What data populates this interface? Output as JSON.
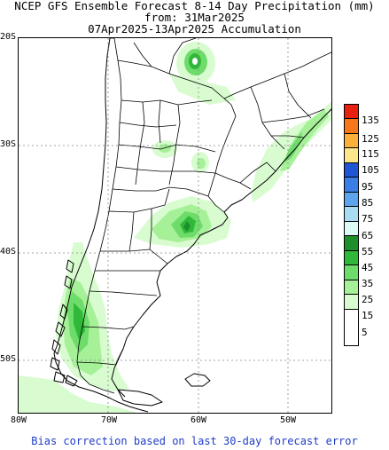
{
  "header": {
    "line1": "NCEP GFS Ensemble Forecast 8-14 Day Precipitation (mm)",
    "line2": "from: 31Mar2025",
    "line3": "07Apr2025-13Apr2025 Accumulation"
  },
  "map": {
    "lat_labels": [
      "20S",
      "30S",
      "40S",
      "50S"
    ],
    "lon_labels": [
      "80W",
      "70W",
      "60W",
      "50W"
    ],
    "ocean_color": "#ffffff",
    "land_outline_color": "#000000"
  },
  "colorbar": {
    "levels": [
      "135",
      "125",
      "115",
      "105",
      "95",
      "85",
      "75",
      "65",
      "55",
      "45",
      "35",
      "25",
      "15",
      "5"
    ],
    "colors": [
      "#e8200e",
      "#f7781a",
      "#fbb03a",
      "#fbe68a",
      "#1f56d6",
      "#3a7ee6",
      "#5ca4ec",
      "#a8dcf2",
      "#dcfaf6",
      "#1e8f2a",
      "#30b83a",
      "#6edc6a",
      "#a6f098",
      "#d8fcd0",
      "#ffffff"
    ]
  },
  "footer": "Bias correction based on last 30-day forecast error"
}
